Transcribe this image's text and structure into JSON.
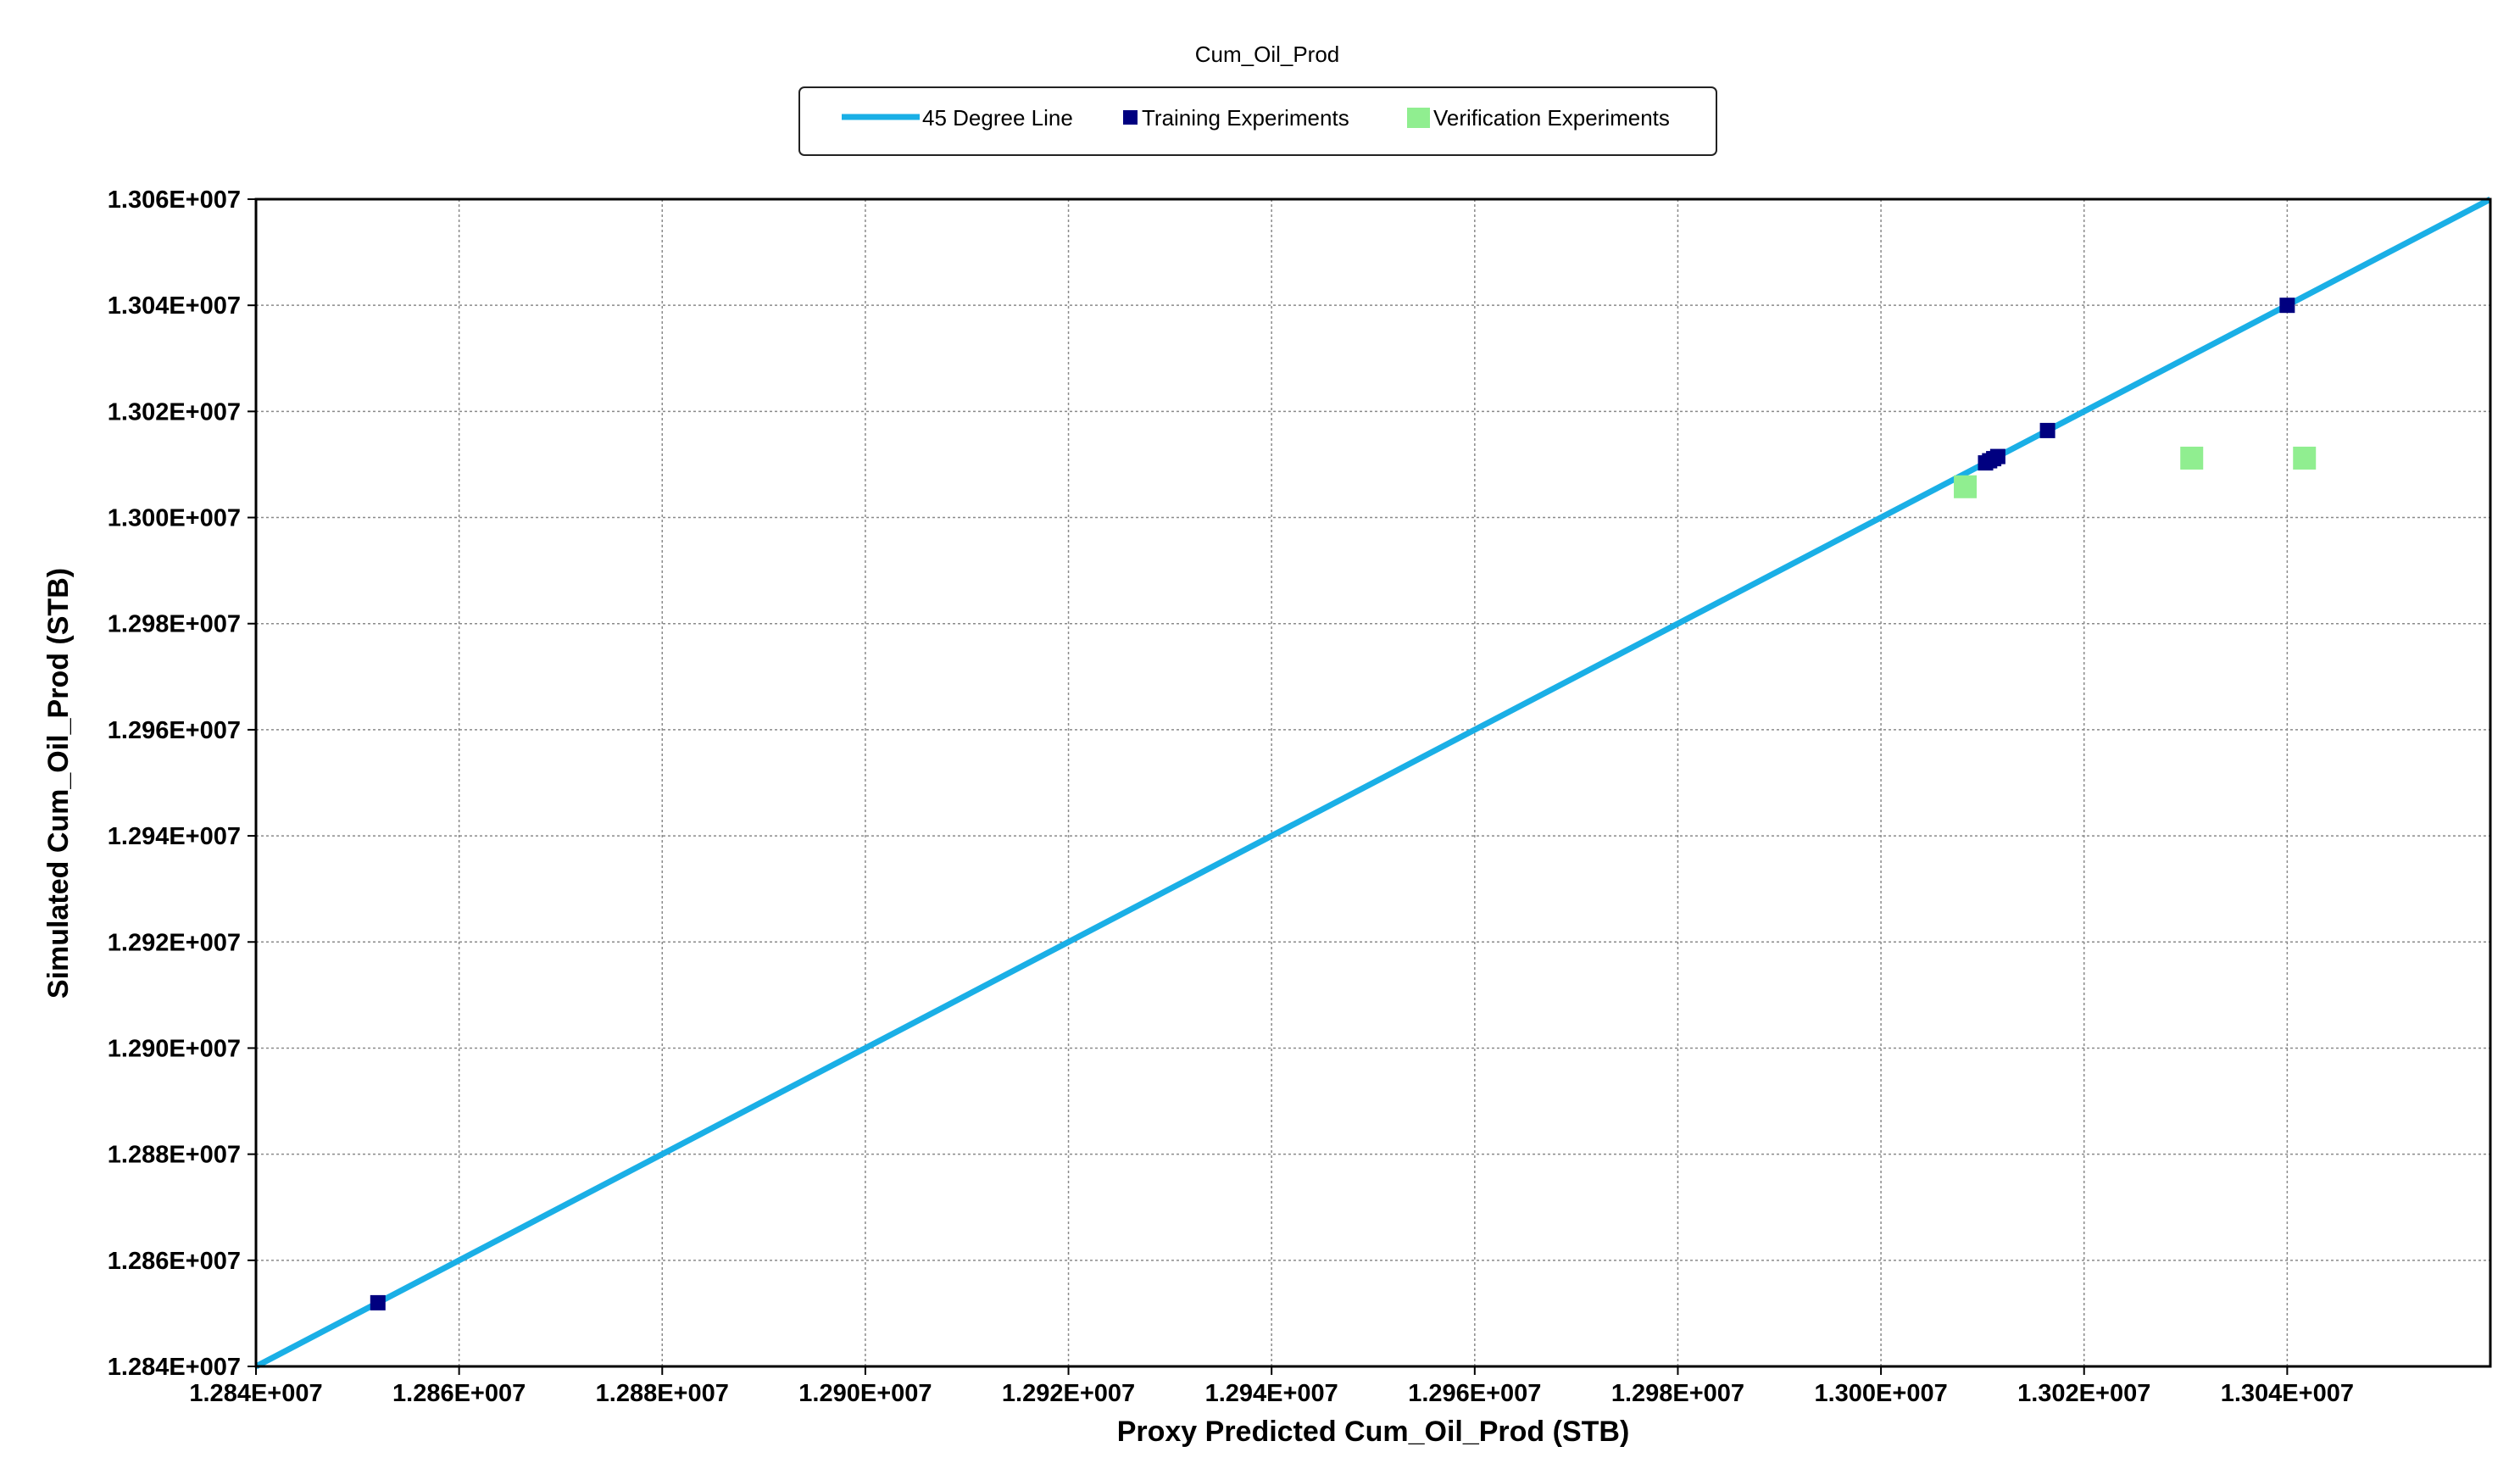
{
  "chart_data": {
    "type": "scatter",
    "title": "Cum_Oil_Prod",
    "xlabel": "Proxy Predicted Cum_Oil_Prod (STB)",
    "ylabel": "Simulated Cum_Oil_Prod (STB)",
    "xlim": [
      12840000,
      13060000
    ],
    "ylim": [
      12840000,
      13060000
    ],
    "grid": true,
    "legend_position": "top-center",
    "x_ticks": [
      {
        "value": 12840000,
        "label": "1.284E+007"
      },
      {
        "value": 12860000,
        "label": "1.286E+007"
      },
      {
        "value": 12880000,
        "label": "1.288E+007"
      },
      {
        "value": 12900000,
        "label": "1.290E+007"
      },
      {
        "value": 12920000,
        "label": "1.292E+007"
      },
      {
        "value": 12940000,
        "label": "1.294E+007"
      },
      {
        "value": 12960000,
        "label": "1.296E+007"
      },
      {
        "value": 12980000,
        "label": "1.298E+007"
      },
      {
        "value": 13000000,
        "label": "1.300E+007"
      },
      {
        "value": 13020000,
        "label": "1.302E+007"
      },
      {
        "value": 13040000,
        "label": "1.304E+007"
      }
    ],
    "y_ticks": [
      {
        "value": 12840000,
        "label": "1.284E+007"
      },
      {
        "value": 12860000,
        "label": "1.286E+007"
      },
      {
        "value": 12880000,
        "label": "1.288E+007"
      },
      {
        "value": 12900000,
        "label": "1.290E+007"
      },
      {
        "value": 12920000,
        "label": "1.292E+007"
      },
      {
        "value": 12940000,
        "label": "1.294E+007"
      },
      {
        "value": 12960000,
        "label": "1.296E+007"
      },
      {
        "value": 12980000,
        "label": "1.298E+007"
      },
      {
        "value": 13000000,
        "label": "1.300E+007"
      },
      {
        "value": 13020000,
        "label": "1.302E+007"
      },
      {
        "value": 13040000,
        "label": "1.304E+007"
      },
      {
        "value": 13060000,
        "label": "1.306E+007"
      }
    ],
    "series": [
      {
        "name": "45 Degree Line",
        "kind": "line",
        "color": "#1aafe6",
        "points": [
          [
            12840000,
            12840000
          ],
          [
            13060000,
            13060000
          ]
        ]
      },
      {
        "name": "Training Experiments",
        "kind": "marker",
        "color": "#000080",
        "points": [
          [
            12852000,
            12852000
          ],
          [
            13010300,
            13010300
          ],
          [
            13010700,
            13010700
          ],
          [
            13011100,
            13011100
          ],
          [
            13011500,
            13011500
          ],
          [
            13016400,
            13016400
          ],
          [
            13040000,
            13040000
          ]
        ]
      },
      {
        "name": "Verification Experiments",
        "kind": "marker",
        "color": "#90ee90",
        "points": [
          [
            13008300,
            13005800
          ],
          [
            13030600,
            13011200
          ],
          [
            13041700,
            13011200
          ]
        ]
      }
    ]
  }
}
